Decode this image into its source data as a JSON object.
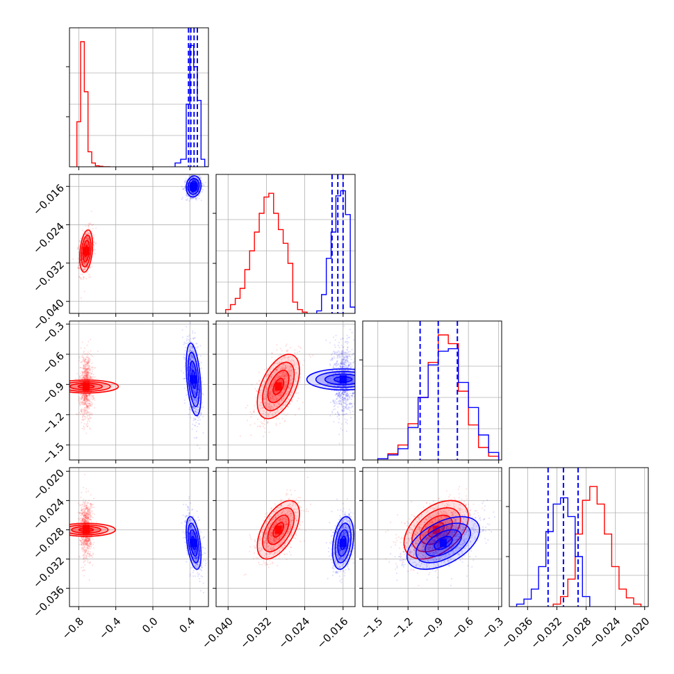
{
  "chart_data": {
    "type": "corner",
    "parameters": [
      {
        "ticks": [
          -0.8,
          -0.4,
          0.0,
          0.4
        ],
        "tick_labels": [
          "−0.8",
          "−0.4",
          "0.0",
          "0.4"
        ],
        "lim": [
          -0.9,
          0.6
        ]
      },
      {
        "ticks": [
          -0.04,
          -0.032,
          -0.024,
          -0.016
        ],
        "tick_labels": [
          "−0.040",
          "−0.032",
          "−0.024",
          "−0.016"
        ],
        "lim": [
          -0.0425,
          -0.0135
        ]
      },
      {
        "ticks": [
          -1.5,
          -1.2,
          -0.9,
          -0.6,
          -0.3
        ],
        "tick_labels": [
          "−1.5",
          "−1.2",
          "−0.9",
          "−0.6",
          "−0.3"
        ],
        "lim": [
          -1.65,
          -0.27
        ]
      },
      {
        "ticks": [
          -0.036,
          -0.032,
          -0.028,
          -0.024,
          -0.02
        ],
        "tick_labels": [
          "−0.036",
          "−0.032",
          "−0.028",
          "−0.024",
          "−0.020"
        ],
        "lim": [
          -0.0385,
          -0.0195
        ]
      }
    ],
    "series": [
      {
        "color": "#ff0000",
        "means": [
          -0.72,
          -0.0295,
          -0.92,
          -0.028
        ],
        "sigmas": [
          0.035,
          0.0022,
          0.16,
          0.002
        ],
        "correlations": [
          [
            1,
            0.3,
            0,
            0
          ],
          [
            0.3,
            1,
            0.5,
            0.55
          ],
          [
            0,
            0.5,
            1,
            0.45
          ],
          [
            0,
            0.55,
            0.45,
            1
          ]
        ],
        "histograms": [
          {
            "edges": [
              -0.82,
              -0.78,
              -0.74,
              -0.7,
              -0.66,
              -0.62,
              -0.58,
              -0.54,
              -0.5,
              -0.46
            ],
            "counts": [
              0.36,
              1.0,
              0.6,
              0.12,
              0.03,
              0.008,
              0.004,
              0.0,
              0.0
            ]
          },
          {
            "edges": [
              -0.0405,
              -0.0395,
              -0.0385,
              -0.0375,
              -0.0365,
              -0.0355,
              -0.0345,
              -0.0335,
              -0.0325,
              -0.0315,
              -0.0305,
              -0.0295,
              -0.0285,
              -0.0275,
              -0.0265,
              -0.0255,
              -0.0245,
              -0.0235
            ],
            "counts": [
              0.03,
              0.07,
              0.12,
              0.2,
              0.35,
              0.5,
              0.65,
              0.8,
              0.93,
              0.96,
              0.8,
              0.67,
              0.56,
              0.4,
              0.09,
              0.03,
              0.01
            ]
          },
          {
            "edges": [
              -1.5,
              -1.4,
              -1.3,
              -1.2,
              -1.1,
              -1.0,
              -0.9,
              -0.8,
              -0.7,
              -0.6,
              -0.5,
              -0.4,
              -0.3
            ],
            "counts": [
              0.01,
              0.05,
              0.12,
              0.29,
              0.5,
              0.78,
              1.0,
              0.93,
              0.55,
              0.28,
              0.1,
              0.03
            ]
          },
          {
            "edges": [
              -0.0325,
              -0.0315,
              -0.0305,
              -0.0295,
              -0.0285,
              -0.0275,
              -0.0265,
              -0.0255,
              -0.0245,
              -0.0235,
              -0.0225,
              -0.0215,
              -0.0205
            ],
            "counts": [
              0.02,
              0.08,
              0.22,
              0.58,
              0.85,
              0.96,
              0.82,
              0.58,
              0.32,
              0.14,
              0.07,
              0.02
            ]
          }
        ]
      },
      {
        "color": "#0000ff",
        "means": [
          0.44,
          -0.016,
          -0.85,
          -0.0298
        ],
        "sigmas": [
          0.04,
          0.0011,
          0.18,
          0.0018
        ],
        "correlations": [
          [
            1,
            0.1,
            -0.4,
            -0.45
          ],
          [
            0.1,
            1,
            0.0,
            0.3
          ],
          [
            -0.4,
            0.0,
            1,
            0.5
          ],
          [
            -0.45,
            0.3,
            0.5,
            1
          ]
        ],
        "histograms": [
          {
            "edges": [
              0.24,
              0.3,
              0.36,
              0.4,
              0.44,
              0.48,
              0.52,
              0.56,
              0.62
            ],
            "counts": [
              0.03,
              0.06,
              0.5,
              0.97,
              0.8,
              0.53,
              0.06,
              0.0
            ]
          },
          {
            "edges": [
              -0.0215,
              -0.0205,
              -0.0195,
              -0.0185,
              -0.0175,
              -0.0165,
              -0.0155,
              -0.0145,
              -0.0135
            ],
            "counts": [
              0.02,
              0.15,
              0.44,
              0.65,
              0.94,
              0.98,
              0.79,
              0.05
            ]
          },
          {
            "edges": [
              -1.5,
              -1.4,
              -1.3,
              -1.2,
              -1.1,
              -1.0,
              -0.9,
              -0.8,
              -0.7,
              -0.6,
              -0.5,
              -0.4,
              -0.3
            ],
            "counts": [
              0.01,
              0.04,
              0.09,
              0.26,
              0.5,
              0.76,
              0.87,
              0.89,
              0.62,
              0.42,
              0.2,
              0.06
            ]
          },
          {
            "edges": [
              -0.0375,
              -0.0365,
              -0.0355,
              -0.0345,
              -0.0335,
              -0.0325,
              -0.0315,
              -0.0305,
              -0.0295,
              -0.0285,
              -0.0275
            ],
            "counts": [
              0.02,
              0.06,
              0.14,
              0.32,
              0.6,
              0.82,
              0.87,
              0.72,
              0.4,
              0.08
            ]
          }
        ],
        "quantiles": [
          [
            0.385,
            0.41,
            0.445,
            0.48
          ],
          [
            -0.0183,
            -0.0171,
            -0.016
          ],
          [
            -1.08,
            -0.9,
            -0.71
          ],
          [
            -0.0332,
            -0.0311,
            -0.0291
          ]
        ]
      }
    ],
    "grid": true
  }
}
